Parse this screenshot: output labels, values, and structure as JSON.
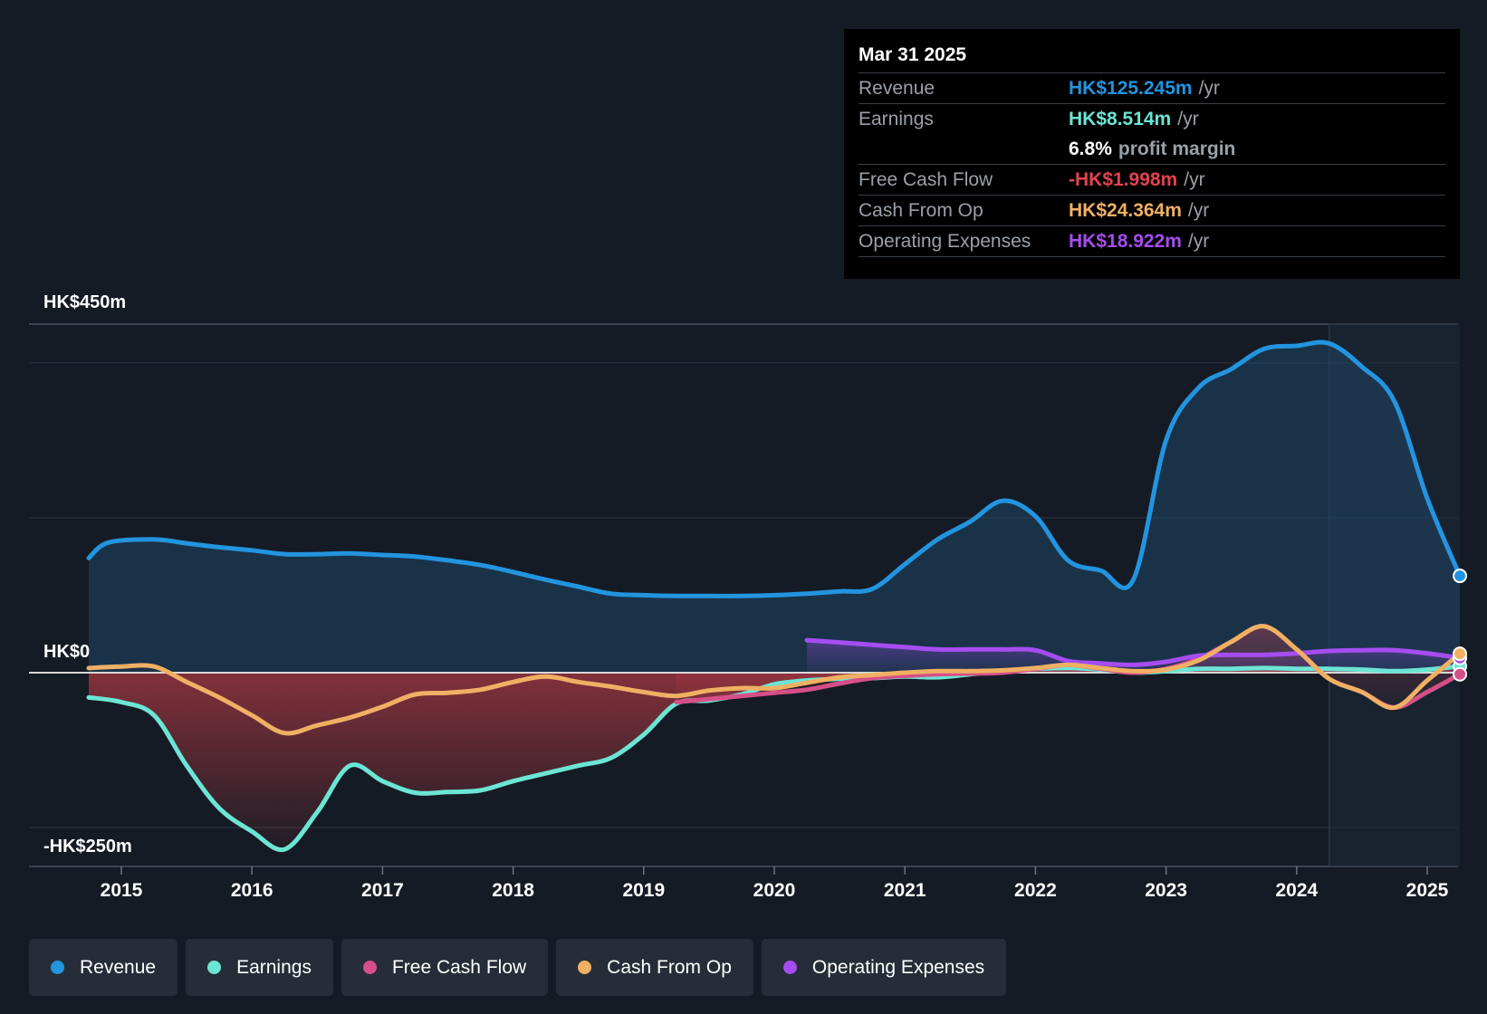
{
  "tooltip": {
    "date": "Mar 31 2025",
    "rows": [
      {
        "label": "Revenue",
        "value": "HK$125.245m",
        "unit": "/yr",
        "color": "#2394df"
      },
      {
        "label": "Earnings",
        "value": "HK$8.514m",
        "unit": "/yr",
        "color": "#6ce5d4"
      },
      {
        "label": "",
        "value": "6.8%",
        "unit": "profit margin",
        "color": "#ffffff"
      },
      {
        "label": "Free Cash Flow",
        "value": "-HK$1.998m",
        "unit": "/yr",
        "color": "#e3434f"
      },
      {
        "label": "Cash From Op",
        "value": "HK$24.364m",
        "unit": "/yr",
        "color": "#f0b064"
      },
      {
        "label": "Operating Expenses",
        "value": "HK$18.922m",
        "unit": "/yr",
        "color": "#a54df0"
      }
    ]
  },
  "chart_data": {
    "type": "line",
    "title": "",
    "xlabel": "",
    "ylabel": "",
    "x_ticks": [
      "2015",
      "2016",
      "2017",
      "2018",
      "2019",
      "2020",
      "2021",
      "2022",
      "2023",
      "2024",
      "2025"
    ],
    "y_labels": {
      "top": "HK$450m",
      "zero": "HK$0",
      "bottom": "-HK$250m"
    },
    "ylim": [
      -250,
      450
    ],
    "xlim": [
      2014.72,
      2025.25
    ],
    "grid": true,
    "legend_position": "bottom",
    "forecast_start": 2024.25,
    "series": [
      {
        "name": "Revenue",
        "color": "#2394df",
        "fill": true,
        "points": [
          [
            2014.75,
            148
          ],
          [
            2014.9,
            168
          ],
          [
            2015.25,
            172
          ],
          [
            2015.5,
            167
          ],
          [
            2015.75,
            162
          ],
          [
            2016.0,
            158
          ],
          [
            2016.25,
            153
          ],
          [
            2016.5,
            153
          ],
          [
            2016.75,
            154
          ],
          [
            2017.0,
            152
          ],
          [
            2017.25,
            150
          ],
          [
            2017.5,
            145
          ],
          [
            2017.75,
            139
          ],
          [
            2018.0,
            130
          ],
          [
            2018.25,
            120
          ],
          [
            2018.5,
            111
          ],
          [
            2018.75,
            102
          ],
          [
            2019.0,
            100
          ],
          [
            2019.25,
            99
          ],
          [
            2019.5,
            99
          ],
          [
            2019.75,
            99
          ],
          [
            2020.0,
            100
          ],
          [
            2020.25,
            102
          ],
          [
            2020.5,
            105
          ],
          [
            2020.75,
            108
          ],
          [
            2021.0,
            140
          ],
          [
            2021.25,
            172
          ],
          [
            2021.5,
            195
          ],
          [
            2021.75,
            222
          ],
          [
            2022.0,
            202
          ],
          [
            2022.25,
            145
          ],
          [
            2022.5,
            132
          ],
          [
            2022.75,
            120
          ],
          [
            2023.0,
            300
          ],
          [
            2023.25,
            368
          ],
          [
            2023.5,
            392
          ],
          [
            2023.75,
            418
          ],
          [
            2024.0,
            422
          ],
          [
            2024.25,
            425
          ],
          [
            2024.5,
            395
          ],
          [
            2024.75,
            350
          ],
          [
            2025.0,
            225
          ],
          [
            2025.25,
            125
          ]
        ]
      },
      {
        "name": "Earnings",
        "color": "#6ce5d4",
        "fill": true,
        "points": [
          [
            2014.75,
            -32
          ],
          [
            2015.0,
            -38
          ],
          [
            2015.25,
            -55
          ],
          [
            2015.5,
            -120
          ],
          [
            2015.75,
            -175
          ],
          [
            2016.0,
            -205
          ],
          [
            2016.25,
            -228
          ],
          [
            2016.5,
            -180
          ],
          [
            2016.75,
            -120
          ],
          [
            2017.0,
            -140
          ],
          [
            2017.25,
            -155
          ],
          [
            2017.5,
            -154
          ],
          [
            2017.75,
            -152
          ],
          [
            2018.0,
            -140
          ],
          [
            2018.25,
            -130
          ],
          [
            2018.5,
            -120
          ],
          [
            2018.75,
            -110
          ],
          [
            2019.0,
            -80
          ],
          [
            2019.25,
            -40
          ],
          [
            2019.5,
            -36
          ],
          [
            2019.75,
            -28
          ],
          [
            2020.0,
            -15
          ],
          [
            2020.25,
            -10
          ],
          [
            2020.5,
            -8
          ],
          [
            2020.75,
            -7
          ],
          [
            2021.0,
            -5
          ],
          [
            2021.25,
            -6
          ],
          [
            2021.5,
            -2
          ],
          [
            2021.75,
            2
          ],
          [
            2022.0,
            5
          ],
          [
            2022.25,
            6
          ],
          [
            2022.5,
            4
          ],
          [
            2022.75,
            0
          ],
          [
            2023.0,
            2
          ],
          [
            2023.25,
            5
          ],
          [
            2023.5,
            5
          ],
          [
            2023.75,
            6
          ],
          [
            2024.0,
            5
          ],
          [
            2024.25,
            5
          ],
          [
            2024.5,
            4
          ],
          [
            2024.75,
            2
          ],
          [
            2025.0,
            4
          ],
          [
            2025.25,
            8.5
          ]
        ]
      },
      {
        "name": "Free Cash Flow",
        "color": "#d64f88",
        "fill": true,
        "points": [
          [
            2019.25,
            -38
          ],
          [
            2019.5,
            -34
          ],
          [
            2019.75,
            -30
          ],
          [
            2020.0,
            -26
          ],
          [
            2020.25,
            -22
          ],
          [
            2020.5,
            -14
          ],
          [
            2020.75,
            -7
          ],
          [
            2021.0,
            -4
          ],
          [
            2021.25,
            -2
          ],
          [
            2021.5,
            -1
          ],
          [
            2021.75,
            0
          ],
          [
            2022.0,
            5
          ],
          [
            2022.25,
            10
          ],
          [
            2022.5,
            5
          ],
          [
            2022.75,
            0
          ],
          [
            2023.0,
            5
          ],
          [
            2023.25,
            18
          ],
          [
            2023.5,
            40
          ],
          [
            2023.75,
            60
          ],
          [
            2024.0,
            30
          ],
          [
            2024.25,
            -8
          ],
          [
            2024.5,
            -25
          ],
          [
            2024.75,
            -45
          ],
          [
            2025.0,
            -25
          ],
          [
            2025.25,
            -2
          ]
        ]
      },
      {
        "name": "Cash From Op",
        "color": "#f0b064",
        "fill": false,
        "points": [
          [
            2014.75,
            6
          ],
          [
            2015.0,
            8
          ],
          [
            2015.25,
            8
          ],
          [
            2015.5,
            -12
          ],
          [
            2015.75,
            -32
          ],
          [
            2016.0,
            -55
          ],
          [
            2016.25,
            -78
          ],
          [
            2016.5,
            -68
          ],
          [
            2016.75,
            -58
          ],
          [
            2017.0,
            -44
          ],
          [
            2017.25,
            -28
          ],
          [
            2017.5,
            -26
          ],
          [
            2017.75,
            -22
          ],
          [
            2018.0,
            -12
          ],
          [
            2018.25,
            -5
          ],
          [
            2018.5,
            -12
          ],
          [
            2018.75,
            -18
          ],
          [
            2019.0,
            -25
          ],
          [
            2019.25,
            -30
          ],
          [
            2019.5,
            -23
          ],
          [
            2019.75,
            -20
          ],
          [
            2020.0,
            -20
          ],
          [
            2020.25,
            -13
          ],
          [
            2020.5,
            -6
          ],
          [
            2020.75,
            -3
          ],
          [
            2021.0,
            0
          ],
          [
            2021.25,
            2
          ],
          [
            2021.5,
            2
          ],
          [
            2021.75,
            3
          ],
          [
            2022.0,
            6
          ],
          [
            2022.25,
            10
          ],
          [
            2022.5,
            6
          ],
          [
            2022.75,
            2
          ],
          [
            2023.0,
            4
          ],
          [
            2023.25,
            16
          ],
          [
            2023.5,
            40
          ],
          [
            2023.75,
            60
          ],
          [
            2024.0,
            30
          ],
          [
            2024.25,
            -8
          ],
          [
            2024.5,
            -25
          ],
          [
            2024.75,
            -45
          ],
          [
            2025.0,
            -10
          ],
          [
            2025.25,
            24.4
          ]
        ]
      },
      {
        "name": "Operating Expenses",
        "color": "#a54df0",
        "fill": true,
        "points": [
          [
            2020.25,
            42
          ],
          [
            2020.5,
            39
          ],
          [
            2020.75,
            36
          ],
          [
            2021.0,
            33
          ],
          [
            2021.25,
            30
          ],
          [
            2021.5,
            30
          ],
          [
            2021.75,
            30
          ],
          [
            2022.0,
            29
          ],
          [
            2022.25,
            15
          ],
          [
            2022.5,
            12
          ],
          [
            2022.75,
            10
          ],
          [
            2023.0,
            14
          ],
          [
            2023.25,
            22
          ],
          [
            2023.5,
            23
          ],
          [
            2023.75,
            23
          ],
          [
            2024.0,
            25
          ],
          [
            2024.25,
            28
          ],
          [
            2024.5,
            29
          ],
          [
            2024.75,
            29
          ],
          [
            2025.0,
            25
          ],
          [
            2025.25,
            19
          ]
        ]
      }
    ]
  },
  "legend": [
    {
      "name": "Revenue",
      "color": "#2394df"
    },
    {
      "name": "Earnings",
      "color": "#6ce5d4"
    },
    {
      "name": "Free Cash Flow",
      "color": "#d64f88"
    },
    {
      "name": "Cash From Op",
      "color": "#f0b064"
    },
    {
      "name": "Operating Expenses",
      "color": "#a54df0"
    }
  ]
}
